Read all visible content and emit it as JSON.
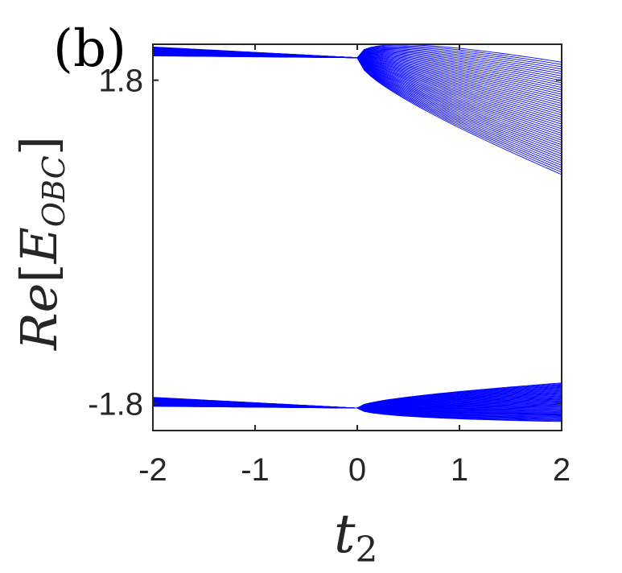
{
  "panel_label": "(b)",
  "chart_data": {
    "type": "line",
    "title": "",
    "xlabel": "t2",
    "ylabel": "Re[E_OBC]",
    "xlim": [
      -2,
      2
    ],
    "ylim": [
      -2.1,
      2.2
    ],
    "x_ticks": [
      -2,
      -1,
      0,
      1,
      2
    ],
    "x_tick_labels": [
      "-2",
      "-1",
      "0",
      "1",
      "2"
    ],
    "y_ticks": [
      -1.8,
      1.8
    ],
    "y_tick_labels": [
      "-1.8",
      "1.8"
    ],
    "grid": false,
    "series_color": "#0000ff",
    "bands": [
      {
        "center_left": 2.12,
        "center_at_zero": 2.05,
        "halfwidth_left": 0.05,
        "upper_at_x2": 2.0,
        "lower_at_x2": 0.75
      },
      {
        "center_left": -1.78,
        "center_at_zero": -1.85,
        "halfwidth_left": 0.05,
        "upper_at_x2": -1.57,
        "lower_at_x2": -2.0
      }
    ],
    "lines_per_band": 50
  },
  "axis_labels": {
    "x_main": "t",
    "x_sub": "2",
    "y_main": "Re",
    "y_open": "[",
    "y_E": "E",
    "y_sub": "OBC",
    "y_close": "]"
  }
}
